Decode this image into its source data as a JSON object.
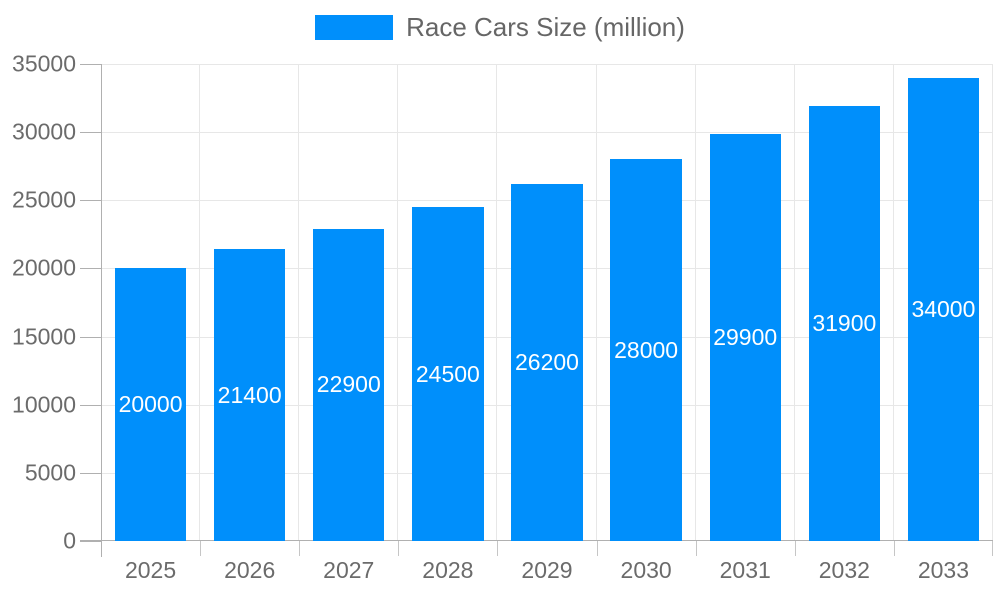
{
  "chart_data": {
    "type": "bar",
    "title": "Race Cars Size (million)",
    "legend": {
      "label": "Race Cars Size (million)",
      "position": "top"
    },
    "categories": [
      "2025",
      "2026",
      "2027",
      "2028",
      "2029",
      "2030",
      "2031",
      "2032",
      "2033"
    ],
    "values": [
      20000,
      21400,
      22900,
      24500,
      26200,
      28000,
      29900,
      31900,
      34000
    ],
    "value_labels": [
      "20000",
      "21400",
      "22900",
      "24500",
      "26200",
      "28000",
      "29900",
      "31900",
      "34000"
    ],
    "value_label_position": "inside-middle",
    "xlabel": "",
    "ylabel": "",
    "ylim": [
      0,
      35000
    ],
    "y_ticks": [
      0,
      5000,
      10000,
      15000,
      20000,
      25000,
      30000,
      35000
    ],
    "y_tick_labels": [
      "0",
      "5000",
      "10000",
      "15000",
      "20000",
      "25000",
      "30000",
      "35000"
    ],
    "grid": "horizontal-and-vertical",
    "colors": {
      "bar": "#008FFB",
      "bar_label": "#ffffff",
      "axis_label": "#6b6b6b",
      "legend_label": "#666666",
      "gridline": "#e7e7e7",
      "axis_line": "#b0b0b0",
      "tick": "#c6c6c6",
      "background": "#ffffff"
    }
  }
}
